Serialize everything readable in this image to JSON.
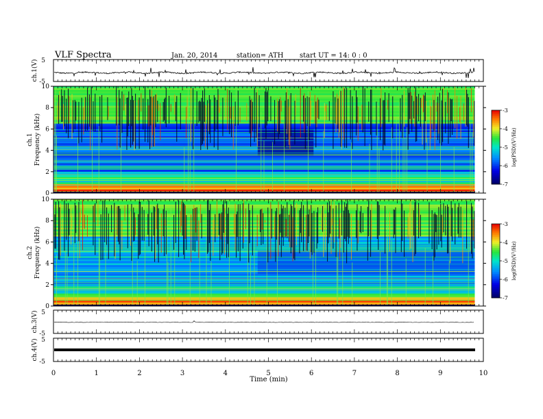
{
  "header": {
    "title": "VLF  Spectra",
    "date": "Jan. 20, 2014",
    "station": "station= ATH",
    "start": "start  UT =   14: 0  : 0"
  },
  "chart_data": [
    {
      "type": "line",
      "panel": "ch1-waveform",
      "ylabel": "ch.1(V)",
      "yticks": [
        "5",
        "-5"
      ],
      "ylim": [
        -5,
        5
      ],
      "description_level": -1
    },
    {
      "type": "heatmap",
      "panel": "ch1-spectrogram",
      "ylabel_channel": "ch.1",
      "ylabel": "Frequency  (kHz)",
      "ylim": [
        0,
        10
      ],
      "yticks": [
        "0",
        "2",
        "4",
        "6",
        "8",
        "10"
      ],
      "colorbar": {
        "label": "log(PSD)(V²/Hz)",
        "range": [
          -7,
          -3
        ],
        "ticks": [
          "-3",
          "-4",
          "-5",
          "-6",
          "-7"
        ]
      }
    },
    {
      "type": "heatmap",
      "panel": "ch2-spectrogram",
      "ylabel_channel": "ch.2",
      "ylabel": "Frequency  (kHz)",
      "ylim": [
        0,
        10
      ],
      "yticks": [
        "0",
        "2",
        "4",
        "6",
        "8",
        "10"
      ],
      "colorbar": {
        "label": "log(PSD)(V²/Hz)",
        "range": [
          -7,
          -3
        ],
        "ticks": [
          "-3",
          "-4",
          "-5",
          "-6",
          "-7"
        ]
      }
    },
    {
      "type": "line",
      "panel": "ch3-waveform",
      "ylabel": "ch.3(V)",
      "yticks": [
        "5",
        "-5"
      ],
      "ylim": [
        -5,
        5
      ]
    },
    {
      "type": "line",
      "panel": "ch4-waveform",
      "ylabel": "ch.4(V)",
      "yticks": [
        "5",
        "-5"
      ],
      "ylim": [
        -5,
        5
      ]
    }
  ],
  "xaxis": {
    "label": "Time  (min)",
    "ticks": [
      "0",
      "1",
      "2",
      "3",
      "4",
      "5",
      "6",
      "7",
      "8",
      "9",
      "10"
    ],
    "xlim": [
      0,
      10
    ],
    "data_end": 9.8
  }
}
